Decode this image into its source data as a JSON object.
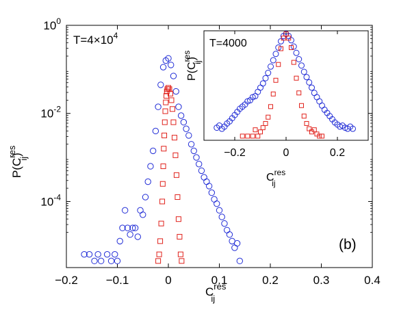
{
  "chart_data": [
    {
      "type": "scatter",
      "title": "",
      "annotation": "T=4×10",
      "annotation_exp": "4",
      "panel_label": "(b)",
      "xlabel": "C",
      "xlabel_sup": "res",
      "xlabel_sub": "ij",
      "ylabel": "P(C",
      "ylabel_sup": "res",
      "ylabel_sub": "ij",
      "ylabel_close": ")",
      "xlim": [
        -0.2,
        0.4
      ],
      "ylim_log10": [
        -5.5,
        0
      ],
      "yscale": "log",
      "xticks": [
        "−0.2",
        "−0.1",
        "0",
        "0.1",
        "0.2",
        "0.3",
        "0.4"
      ],
      "xtick_values": [
        -0.2,
        -0.1,
        0,
        0.1,
        0.2,
        0.3,
        0.4
      ],
      "ytick_base": "10",
      "yticks_exp": [
        "0",
        "-2",
        "-4"
      ],
      "ytick_values_log10": [
        0,
        -2,
        -4
      ],
      "series": [
        {
          "name": "blue circles",
          "marker": "circle",
          "color": "#1f2bd6",
          "points": [
            [
              -0.165,
              -5.2
            ],
            [
              -0.155,
              -5.2
            ],
            [
              -0.145,
              -5.35
            ],
            [
              -0.138,
              -5.2
            ],
            [
              -0.132,
              -5.35
            ],
            [
              -0.12,
              -5.2
            ],
            [
              -0.112,
              -5.35
            ],
            [
              -0.105,
              -5.2
            ],
            [
              -0.1,
              -5.35
            ],
            [
              -0.095,
              -4.9
            ],
            [
              -0.09,
              -4.6
            ],
            [
              -0.085,
              -4.2
            ],
            [
              -0.08,
              -4.6
            ],
            [
              -0.075,
              -4.75
            ],
            [
              -0.07,
              -4.6
            ],
            [
              -0.065,
              -4.6
            ],
            [
              -0.06,
              -4.8
            ],
            [
              -0.055,
              -4.2
            ],
            [
              -0.05,
              -4.3
            ],
            [
              -0.045,
              -3.9
            ],
            [
              -0.04,
              -3.55
            ],
            [
              -0.035,
              -3.2
            ],
            [
              -0.03,
              -2.85
            ],
            [
              -0.025,
              -2.4
            ],
            [
              -0.02,
              -1.85
            ],
            [
              -0.015,
              -1.35
            ],
            [
              -0.01,
              -0.95
            ],
            [
              -0.005,
              -0.8
            ],
            [
              0.0,
              -0.75
            ],
            [
              0.005,
              -0.9
            ],
            [
              0.01,
              -1.15
            ],
            [
              0.015,
              -1.5
            ],
            [
              0.02,
              -1.85
            ],
            [
              0.025,
              -2.05
            ],
            [
              0.03,
              -2.2
            ],
            [
              0.035,
              -2.35
            ],
            [
              0.04,
              -2.5
            ],
            [
              0.045,
              -2.7
            ],
            [
              0.05,
              -2.85
            ],
            [
              0.055,
              -3.0
            ],
            [
              0.06,
              -3.15
            ],
            [
              0.065,
              -3.3
            ],
            [
              0.07,
              -3.45
            ],
            [
              0.075,
              -3.55
            ],
            [
              0.08,
              -3.65
            ],
            [
              0.085,
              -3.8
            ],
            [
              0.09,
              -3.95
            ],
            [
              0.095,
              -4.05
            ],
            [
              0.1,
              -4.2
            ],
            [
              0.105,
              -4.35
            ],
            [
              0.11,
              -4.5
            ],
            [
              0.115,
              -4.65
            ],
            [
              0.12,
              -4.75
            ],
            [
              0.125,
              -4.9
            ],
            [
              0.13,
              -5.05
            ],
            [
              0.135,
              -4.95
            ],
            [
              0.14,
              -5.35
            ]
          ]
        },
        {
          "name": "red squares",
          "marker": "square",
          "color": "#e0201a",
          "points": [
            [
              -0.02,
              -5.35
            ],
            [
              -0.018,
              -5.2
            ],
            [
              -0.016,
              -4.9
            ],
            [
              -0.014,
              -4.5
            ],
            [
              -0.012,
              -4.0
            ],
            [
              -0.011,
              -3.6
            ],
            [
              -0.01,
              -3.2
            ],
            [
              -0.009,
              -2.8
            ],
            [
              -0.008,
              -2.5
            ],
            [
              -0.007,
              -2.2
            ],
            [
              -0.006,
              -1.95
            ],
            [
              -0.005,
              -1.75
            ],
            [
              -0.004,
              -1.6
            ],
            [
              -0.003,
              -1.5
            ],
            [
              -0.002,
              -1.45
            ],
            [
              0.0,
              -1.42
            ],
            [
              0.002,
              -1.45
            ],
            [
              0.004,
              -1.55
            ],
            [
              0.006,
              -1.7
            ],
            [
              0.008,
              -1.9
            ],
            [
              0.01,
              -2.2
            ],
            [
              0.012,
              -2.55
            ],
            [
              0.014,
              -2.95
            ],
            [
              0.016,
              -3.4
            ],
            [
              0.018,
              -3.9
            ],
            [
              0.02,
              -4.4
            ],
            [
              0.022,
              -4.8
            ],
            [
              0.024,
              -5.2
            ],
            [
              0.026,
              -5.35
            ]
          ]
        }
      ]
    },
    {
      "type": "scatter",
      "annotation": "T=4000",
      "xlabel": "C",
      "xlabel_sup": "res",
      "xlabel_sub": "ij",
      "ylabel": "P(C",
      "ylabel_sup": "res",
      "ylabel_sub": "ij",
      "ylabel_close": ")",
      "xlim": [
        -0.32,
        0.32
      ],
      "ylim": [
        0,
        1
      ],
      "xticks": [
        "−0.2",
        "0",
        "0.2"
      ],
      "xtick_values": [
        -0.2,
        0,
        0.2
      ],
      "series": [
        {
          "name": "blue circles",
          "marker": "circle",
          "color": "#1f2bd6",
          "points": [
            [
              -0.27,
              0.1
            ],
            [
              -0.26,
              0.12
            ],
            [
              -0.25,
              0.09
            ],
            [
              -0.24,
              0.11
            ],
            [
              -0.23,
              0.14
            ],
            [
              -0.22,
              0.16
            ],
            [
              -0.21,
              0.19
            ],
            [
              -0.2,
              0.22
            ],
            [
              -0.19,
              0.25
            ],
            [
              -0.18,
              0.28
            ],
            [
              -0.17,
              0.3
            ],
            [
              -0.16,
              0.32
            ],
            [
              -0.15,
              0.35
            ],
            [
              -0.14,
              0.36
            ],
            [
              -0.13,
              0.39
            ],
            [
              -0.12,
              0.4
            ],
            [
              -0.11,
              0.44
            ],
            [
              -0.1,
              0.48
            ],
            [
              -0.09,
              0.52
            ],
            [
              -0.08,
              0.57
            ],
            [
              -0.07,
              0.62
            ],
            [
              -0.06,
              0.68
            ],
            [
              -0.05,
              0.74
            ],
            [
              -0.04,
              0.8
            ],
            [
              -0.03,
              0.86
            ],
            [
              -0.02,
              0.92
            ],
            [
              -0.01,
              0.97
            ],
            [
              0.0,
              0.99
            ],
            [
              0.01,
              0.97
            ],
            [
              0.02,
              0.93
            ],
            [
              0.03,
              0.87
            ],
            [
              0.04,
              0.81
            ],
            [
              0.05,
              0.75
            ],
            [
              0.06,
              0.69
            ],
            [
              0.07,
              0.63
            ],
            [
              0.08,
              0.58
            ],
            [
              0.09,
              0.53
            ],
            [
              0.1,
              0.48
            ],
            [
              0.11,
              0.43
            ],
            [
              0.12,
              0.39
            ],
            [
              0.13,
              0.35
            ],
            [
              0.14,
              0.31
            ],
            [
              0.15,
              0.27
            ],
            [
              0.16,
              0.24
            ],
            [
              0.17,
              0.21
            ],
            [
              0.18,
              0.18
            ],
            [
              0.19,
              0.15
            ],
            [
              0.2,
              0.13
            ],
            [
              0.21,
              0.11
            ],
            [
              0.22,
              0.12
            ],
            [
              0.23,
              0.1
            ],
            [
              0.24,
              0.09
            ],
            [
              0.25,
              0.11
            ],
            [
              0.26,
              0.09
            ]
          ]
        },
        {
          "name": "red squares",
          "marker": "square",
          "color": "#e0201a",
          "points": [
            [
              -0.17,
              0.02
            ],
            [
              -0.15,
              0.02
            ],
            [
              -0.13,
              0.02
            ],
            [
              -0.12,
              0.08
            ],
            [
              -0.11,
              0.02
            ],
            [
              -0.1,
              0.06
            ],
            [
              -0.09,
              0.1
            ],
            [
              -0.08,
              0.14
            ],
            [
              -0.07,
              0.2
            ],
            [
              -0.06,
              0.3
            ],
            [
              -0.05,
              0.42
            ],
            [
              -0.04,
              0.55
            ],
            [
              -0.03,
              0.7
            ],
            [
              -0.02,
              0.85
            ],
            [
              -0.01,
              0.95
            ],
            [
              0.0,
              0.99
            ],
            [
              0.01,
              0.95
            ],
            [
              0.02,
              0.86
            ],
            [
              0.03,
              0.72
            ],
            [
              0.04,
              0.57
            ],
            [
              0.05,
              0.43
            ],
            [
              0.06,
              0.31
            ],
            [
              0.07,
              0.21
            ],
            [
              0.08,
              0.14
            ],
            [
              0.09,
              0.09
            ],
            [
              0.1,
              0.06
            ],
            [
              0.11,
              0.08
            ],
            [
              0.12,
              0.04
            ],
            [
              0.13,
              0.02
            ],
            [
              0.14,
              0.02
            ]
          ]
        }
      ]
    }
  ]
}
